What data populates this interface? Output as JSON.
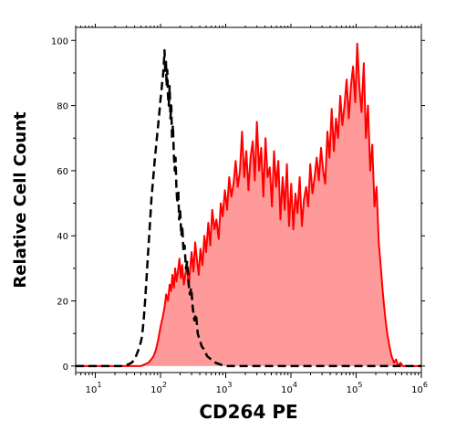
{
  "chart_data": {
    "type": "area",
    "title": "",
    "xlabel": "CD264 PE",
    "ylabel": "Relative Cell Count",
    "x_scale": "log",
    "xlim": [
      5,
      1000000
    ],
    "ylim": [
      -2,
      104
    ],
    "x_ticks": [
      {
        "value": 10,
        "label": "10",
        "exp": "1"
      },
      {
        "value": 100,
        "label": "10",
        "exp": "2"
      },
      {
        "value": 1000,
        "label": "10",
        "exp": "3"
      },
      {
        "value": 10000,
        "label": "10",
        "exp": "4"
      },
      {
        "value": 100000,
        "label": "10",
        "exp": "5"
      },
      {
        "value": 1000000,
        "label": "10",
        "exp": "6"
      }
    ],
    "y_ticks": [
      {
        "value": 0,
        "label": "0"
      },
      {
        "value": 20,
        "label": "20"
      },
      {
        "value": 40,
        "label": "40"
      },
      {
        "value": 60,
        "label": "60"
      },
      {
        "value": 80,
        "label": "80"
      },
      {
        "value": 100,
        "label": "100"
      }
    ],
    "grid": false,
    "legend": "none",
    "colors": {
      "stained_line": "#ff0000",
      "stained_fill": "#ff9a9a",
      "control_line": "#000000"
    },
    "series": [
      {
        "style": "filled-solid",
        "x": [
          5,
          30,
          50,
          65,
          72,
          78,
          85,
          92,
          100,
          108,
          115,
          122,
          130,
          138,
          145,
          152,
          160,
          168,
          176,
          185,
          195,
          205,
          215,
          228,
          240,
          255,
          270,
          285,
          300,
          320,
          340,
          360,
          385,
          410,
          440,
          470,
          500,
          540,
          580,
          620,
          670,
          720,
          780,
          840,
          900,
          970,
          1050,
          1130,
          1220,
          1320,
          1420,
          1530,
          1650,
          1780,
          1920,
          2070,
          2230,
          2400,
          2590,
          2790,
          3010,
          3250,
          3500,
          3780,
          4070,
          4390,
          4740,
          5110,
          5510,
          5940,
          6410,
          6910,
          7460,
          8040,
          8670,
          9350,
          10100,
          10900,
          11700,
          12600,
          13600,
          14700,
          15800,
          17100,
          18400,
          19800,
          21400,
          23100,
          24900,
          26800,
          28900,
          31200,
          33600,
          36300,
          39100,
          42200,
          45500,
          49000,
          52900,
          57000,
          61500,
          66300,
          71500,
          77100,
          83200,
          89700,
          96700,
          104000,
          112000,
          121000,
          131000,
          141000,
          152000,
          164000,
          177000,
          191000,
          206000,
          222000,
          240000,
          258000,
          279000,
          300000,
          325000,
          350000,
          380000,
          410000,
          440000,
          480000,
          520000,
          1000000
        ],
        "values": [
          0,
          0,
          0,
          1,
          2,
          3,
          5,
          8,
          12,
          15,
          18,
          22,
          20,
          25,
          23,
          28,
          24,
          30,
          26,
          29,
          33,
          27,
          31,
          25,
          28,
          32,
          24,
          30,
          35,
          29,
          38,
          33,
          28,
          36,
          31,
          40,
          35,
          44,
          37,
          48,
          42,
          45,
          39,
          50,
          46,
          54,
          48,
          58,
          52,
          56,
          63,
          55,
          60,
          72,
          58,
          66,
          54,
          64,
          69,
          57,
          75,
          60,
          67,
          52,
          70,
          58,
          61,
          49,
          66,
          55,
          63,
          45,
          58,
          48,
          62,
          43,
          56,
          42,
          53,
          47,
          58,
          43,
          51,
          55,
          49,
          62,
          53,
          58,
          64,
          57,
          67,
          60,
          56,
          72,
          64,
          79,
          66,
          76,
          70,
          83,
          74,
          80,
          88,
          76,
          86,
          92,
          81,
          99,
          86,
          78,
          93,
          70,
          80,
          60,
          68,
          49,
          55,
          38,
          30,
          22,
          15,
          10,
          6,
          3,
          1,
          2,
          0,
          1,
          0,
          0
        ]
      },
      {
        "style": "dashed",
        "x": [
          5,
          25,
          32,
          36,
          40,
          44,
          48,
          52,
          55,
          58,
          61,
          64,
          67,
          70,
          73,
          76,
          79,
          82,
          85,
          88,
          91,
          94,
          97,
          100,
          103,
          106,
          109,
          112,
          115,
          118,
          121,
          124,
          127,
          130,
          134,
          138,
          142,
          146,
          150,
          155,
          160,
          165,
          170,
          175,
          181,
          187,
          193,
          200,
          208,
          216,
          225,
          235,
          245,
          256,
          268,
          282,
          296,
          312,
          330,
          350,
          372,
          398,
          430,
          470,
          520,
          600,
          700,
          820,
          1000,
          2000,
          5000,
          20000,
          100000,
          1000000
        ],
        "values": [
          0,
          0,
          0.5,
          1,
          2,
          4,
          6,
          9,
          14,
          20,
          27,
          34,
          40,
          46,
          52,
          56,
          60,
          64,
          67,
          70,
          73,
          76,
          79,
          82,
          84,
          87,
          89,
          92,
          97,
          90,
          94,
          86,
          91,
          83,
          80,
          86,
          76,
          80,
          70,
          74,
          65,
          60,
          64,
          55,
          50,
          54,
          45,
          48,
          40,
          43,
          35,
          37,
          30,
          32,
          26,
          22,
          24,
          18,
          14,
          16,
          10,
          8,
          6,
          5,
          3,
          2,
          1,
          0.5,
          0,
          0,
          0,
          0,
          0,
          0
        ]
      }
    ]
  }
}
